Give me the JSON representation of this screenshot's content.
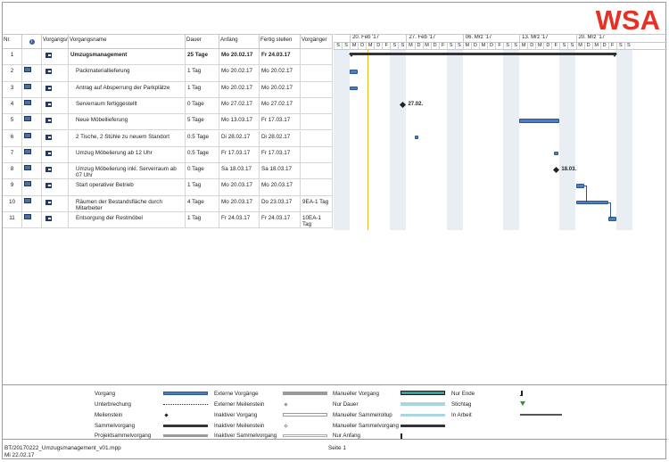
{
  "logo": {
    "text": "WSA",
    "color": "#e63226"
  },
  "columns": {
    "nr": "Nr.",
    "mode": "Vorgangsmodus",
    "name": "Vorgangsname",
    "duration": "Dauer",
    "start": "Anfang",
    "finish": "Fertig stellen",
    "predecessors": "Vorgänger"
  },
  "tasks": [
    {
      "nr": "1",
      "name": "Umzugsmanagement",
      "duration": "25 Tage",
      "start": "Mo 20.02.17",
      "finish": "Fr 24.03.17",
      "pred": "",
      "summary": true
    },
    {
      "nr": "2",
      "name": "Packmateriallieferung",
      "duration": "1 Tag",
      "start": "Mo 20.02.17",
      "finish": "Mo 20.02.17",
      "pred": ""
    },
    {
      "nr": "3",
      "name": "Antrag auf Absperrung der Parkplätze",
      "duration": "1 Tag",
      "start": "Mo 20.02.17",
      "finish": "Mo 20.02.17",
      "pred": ""
    },
    {
      "nr": "4",
      "name": "Serverraum fertiggestellt",
      "duration": "0 Tage",
      "start": "Mo 27.02.17",
      "finish": "Mo 27.02.17",
      "pred": ""
    },
    {
      "nr": "5",
      "name": "Neue Möbellieferung",
      "duration": "5 Tage",
      "start": "Mo 13.03.17",
      "finish": "Fr 17.03.17",
      "pred": ""
    },
    {
      "nr": "6",
      "name": "2 Tische, 2 Stühle zu neuem Standort",
      "duration": "0.5 Tage",
      "start": "Di 28.02.17",
      "finish": "Di 28.02.17",
      "pred": ""
    },
    {
      "nr": "7",
      "name": "Umzug Möbelierung ab 12 Uhr",
      "duration": "0.5 Tage",
      "start": "Fr 17.03.17",
      "finish": "Fr 17.03.17",
      "pred": ""
    },
    {
      "nr": "8",
      "name": "Umzug Möbelierung inkl. Serverraum ab 07 Uhr",
      "duration": "0 Tage",
      "start": "Sa 18.03.17",
      "finish": "Sa 18.03.17",
      "pred": ""
    },
    {
      "nr": "9",
      "name": "Start operativer Betrieb",
      "duration": "1 Tag",
      "start": "Mo 20.03.17",
      "finish": "Mo 20.03.17",
      "pred": ""
    },
    {
      "nr": "10",
      "name": "Räumen der Bestandsfläche durch Mitarbeiter",
      "duration": "4 Tage",
      "start": "Mo 20.03.17",
      "finish": "Do 23.03.17",
      "pred": "9EA-1 Tag"
    },
    {
      "nr": "11",
      "name": "Entsorgung der Restmöbel",
      "duration": "1 Tag",
      "start": "Fr 24.03.17",
      "finish": "Fr 24.03.17",
      "pred": "10EA-1 Tag"
    }
  ],
  "timeline": {
    "weeks": [
      "20. Feb '17",
      "27. Feb '17",
      "06. Mrz '17",
      "13. Mrz '17",
      "20. Mrz '17"
    ],
    "day_letters": [
      "S",
      "S",
      "M",
      "D",
      "M",
      "D",
      "F",
      "S",
      "S",
      "M",
      "D",
      "M",
      "D",
      "F",
      "S",
      "S",
      "M",
      "D",
      "M",
      "D",
      "F",
      "S",
      "S",
      "M",
      "D",
      "M",
      "D",
      "F",
      "S",
      "S",
      "M",
      "D",
      "M",
      "D",
      "F",
      "S",
      "S"
    ],
    "milestone_labels": {
      "m4": "27.02.",
      "m8": "18.03."
    }
  },
  "legend": {
    "col1": [
      "Vorgang",
      "Unterbrechung",
      "Meilenstein",
      "Sammelvorgang",
      "Projektsammelvorgang"
    ],
    "col2": [
      "Externe Vorgänge",
      "Externer Meilenstein",
      "Inaktiver Vorgang",
      "Inaktiver Meilenstein",
      "Inaktiver Sammelvorgang"
    ],
    "col3": [
      "Manueller Vorgang",
      "Nur Dauer",
      "Manueller Sammelrollup",
      "Manueller Sammelvorgang",
      "Nur Anfang"
    ],
    "col4": [
      "Nur Ende",
      "Stichtag",
      "In Arbeit"
    ]
  },
  "footer": {
    "file": "BT/20170222_Umzugsmanagement_v01.mpp",
    "date": "Mi 22.02.17",
    "page": "Seite 1"
  },
  "colors": {
    "bar": "#4f7fc0",
    "weekend": "#e9edf4",
    "today": "#e8b923",
    "external": "#9a9a9a",
    "manual": "#2aa3a8",
    "progress": "#555555"
  }
}
